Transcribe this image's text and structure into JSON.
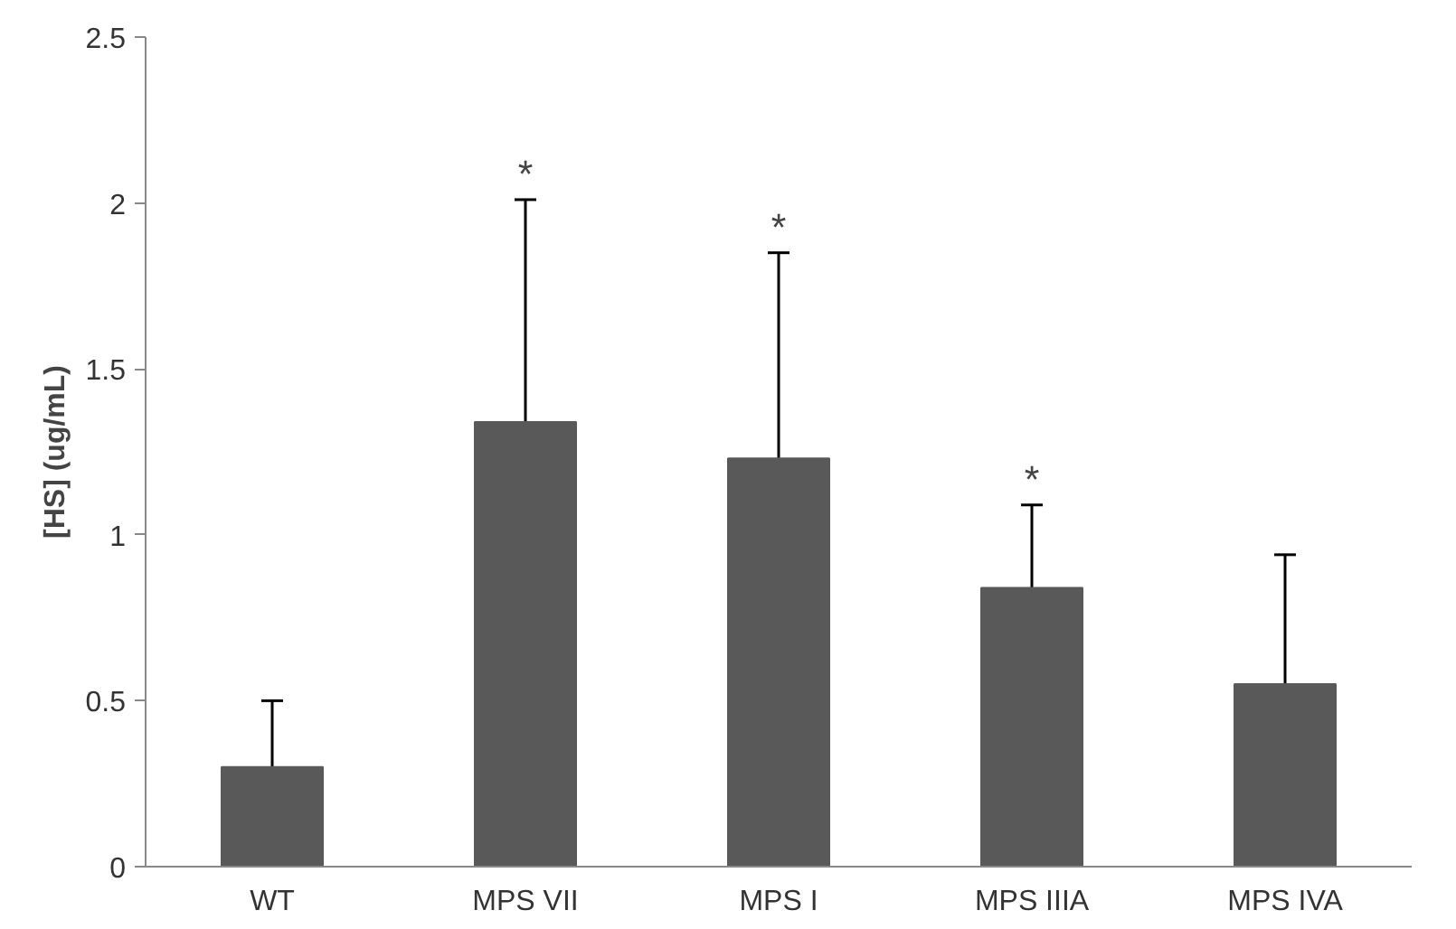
{
  "chart_data": {
    "type": "bar",
    "ylabel": "[HS] (ug/mL)",
    "categories": [
      "WT",
      "MPS VII",
      "MPS I",
      "MPS IIIA",
      "MPS IVA"
    ],
    "values": [
      0.3,
      1.34,
      1.23,
      0.84,
      0.55
    ],
    "errors": [
      [
        0.3,
        0.5
      ],
      [
        1.34,
        2.01
      ],
      [
        1.23,
        1.85
      ],
      [
        0.84,
        1.09
      ],
      [
        0.55,
        0.94
      ]
    ],
    "color": "#595959",
    "ylim": [
      0,
      2.5
    ],
    "yticks": [
      0,
      0.5,
      1,
      1.5,
      2,
      2.5
    ],
    "grid": false,
    "annotations": [
      {
        "text": "*",
        "x": "MPS VII",
        "y": 2.01
      },
      {
        "text": "*",
        "x": "MPS I",
        "y": 1.85
      },
      {
        "text": "*",
        "x": "MPS IIIA",
        "y": 1.09
      }
    ]
  }
}
